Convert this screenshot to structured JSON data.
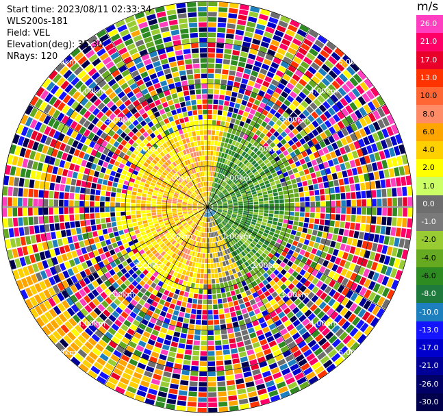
{
  "info": {
    "start_time": "Start time: 2023/08/11 02:33:34",
    "device": "WLS200s-181",
    "field": "Field: VEL",
    "elevation": "Elevation(deg): 35.30",
    "nrays": "NRays: 120"
  },
  "chart_data": {
    "type": "heatmap",
    "projection": "polar-ppi",
    "unit": "m/s",
    "range_ring_labels": [
      "1.00km",
      "2.00km",
      "3.00km",
      "4.00km",
      "5.00km"
    ],
    "colorbar": {
      "ticks": [
        "26.0",
        "21.0",
        "17.0",
        "13.0",
        "10.0",
        "8.0",
        "6.0",
        "4.0",
        "2.0",
        "1.0",
        "0.0",
        "-1.0",
        "-2.0",
        "-4.0",
        "-6.0",
        "-8.0",
        "-10.0",
        "-13.0",
        "-17.0",
        "-21.0",
        "-26.0",
        "-30.0"
      ],
      "colors": [
        "#ff3fbf",
        "#ff0066",
        "#e8002a",
        "#ff3300",
        "#ff6633",
        "#ff8c66",
        "#ffa500",
        "#ffd000",
        "#ffff00",
        "#ccff66",
        "#6e6e6e",
        "#7a7a7a",
        "#99cc33",
        "#66aa22",
        "#2e8b22",
        "#1f7a3d",
        "#1e7fbf",
        "#1414ff",
        "#0000cc",
        "#000099",
        "#000066",
        "#00004d"
      ]
    }
  }
}
